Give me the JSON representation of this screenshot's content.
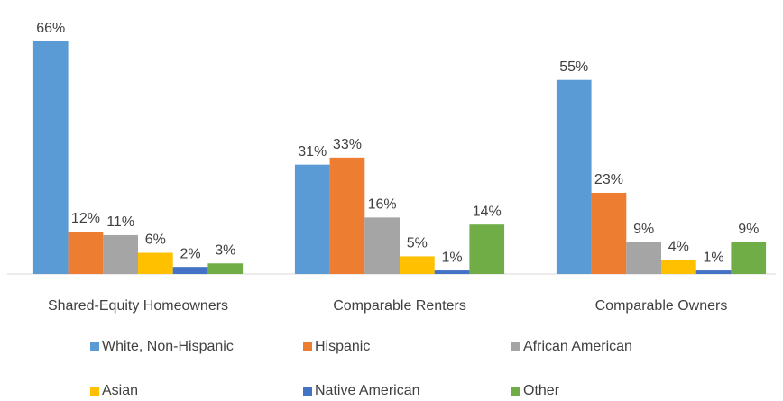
{
  "chart_data": {
    "type": "bar",
    "categories": [
      "Shared-Equity Homeowners",
      "Comparable Renters",
      "Comparable Owners"
    ],
    "series": [
      {
        "name": "White, Non-Hispanic",
        "color": "#5b9bd5",
        "values": [
          66,
          31,
          55
        ],
        "value_labels": [
          "66%",
          "31%",
          "55%"
        ]
      },
      {
        "name": "Hispanic",
        "color": "#ed7d31",
        "values": [
          12,
          33,
          23
        ],
        "value_labels": [
          "12%",
          "33%",
          "23%"
        ]
      },
      {
        "name": "African American",
        "color": "#a5a5a5",
        "values": [
          11,
          16,
          9
        ],
        "value_labels": [
          "11%",
          "16%",
          "9%"
        ]
      },
      {
        "name": "Asian",
        "color": "#ffc000",
        "values": [
          6,
          5,
          4
        ],
        "value_labels": [
          "6%",
          "5%",
          "4%"
        ]
      },
      {
        "name": "Native American",
        "color": "#4472c4",
        "values": [
          2,
          1,
          1
        ],
        "value_labels": [
          "2%",
          "1%",
          "1%"
        ]
      },
      {
        "name": "Other",
        "color": "#70ad47",
        "values": [
          3,
          14,
          9
        ],
        "value_labels": [
          "3%",
          "14%",
          "9%"
        ]
      }
    ],
    "ylim": [
      0,
      70
    ]
  }
}
